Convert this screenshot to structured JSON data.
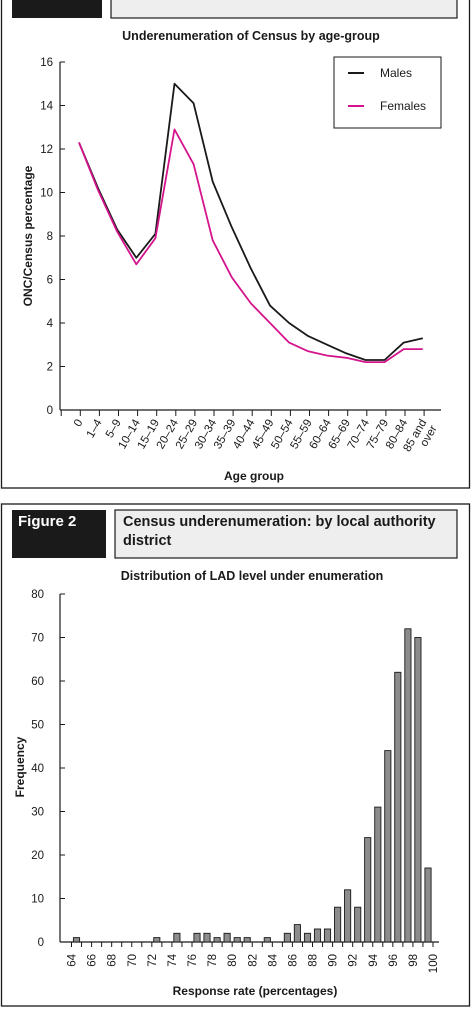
{
  "figure2": {
    "tag": "Figure 2",
    "heading_line1": "Census underenumeration: by local authority",
    "heading_line2": "district"
  },
  "chart_data": [
    {
      "type": "line",
      "title": "Underenumeration of Census by age-group",
      "xlabel": "Age group",
      "ylabel": "ONC/Census percentage",
      "ylim": [
        0,
        16
      ],
      "yticks": [
        0,
        2,
        4,
        6,
        8,
        10,
        12,
        14,
        16
      ],
      "categories": [
        "0",
        "1–4",
        "5–9",
        "10–14",
        "15–19",
        "20–24",
        "25–29",
        "30–34",
        "35–39",
        "40–44",
        "45–49",
        "50–54",
        "55–59",
        "60–64",
        "65–69",
        "70–74",
        "75–79",
        "80–84",
        "85 and over"
      ],
      "legend_position": "top-right",
      "grid": false,
      "series": [
        {
          "name": "Males",
          "color": "#1a1a1a",
          "values": [
            12.3,
            10.2,
            8.3,
            7.0,
            8.1,
            15.0,
            14.1,
            10.5,
            8.4,
            6.5,
            4.8,
            4.0,
            3.4,
            3.0,
            2.6,
            2.3,
            2.3,
            3.1,
            3.3
          ]
        },
        {
          "name": "Females",
          "color": "#d4148c",
          "values": [
            12.3,
            10.1,
            8.2,
            6.7,
            7.9,
            12.9,
            11.3,
            7.8,
            6.1,
            4.9,
            4.0,
            3.1,
            2.7,
            2.5,
            2.4,
            2.2,
            2.2,
            2.8,
            2.8
          ]
        }
      ]
    },
    {
      "type": "bar",
      "title": "Distribution of LAD level under enumeration",
      "xlabel": "Response rate (percentages)",
      "ylabel": "Frequency",
      "ylim": [
        0,
        80
      ],
      "yticks": [
        0,
        10,
        20,
        30,
        40,
        50,
        60,
        70,
        80
      ],
      "xlim": [
        64,
        100
      ],
      "xticks": [
        64,
        66,
        68,
        70,
        72,
        74,
        76,
        78,
        80,
        82,
        84,
        86,
        88,
        90,
        92,
        94,
        96,
        98,
        100
      ],
      "bar_color": "#8c8c8c",
      "grid": false,
      "x": [
        64,
        65,
        66,
        67,
        68,
        69,
        70,
        71,
        72,
        73,
        74,
        75,
        76,
        77,
        78,
        79,
        80,
        81,
        82,
        83,
        84,
        85,
        86,
        87,
        88,
        89,
        90,
        91,
        92,
        93,
        94,
        95,
        96,
        97,
        98,
        99
      ],
      "values": [
        1,
        0,
        0,
        0,
        0,
        0,
        0,
        0,
        1,
        0,
        2,
        0,
        2,
        2,
        1,
        2,
        1,
        1,
        0,
        1,
        0,
        2,
        4,
        2,
        3,
        3,
        8,
        12,
        8,
        24,
        31,
        44,
        62,
        72,
        70,
        17
      ]
    }
  ]
}
